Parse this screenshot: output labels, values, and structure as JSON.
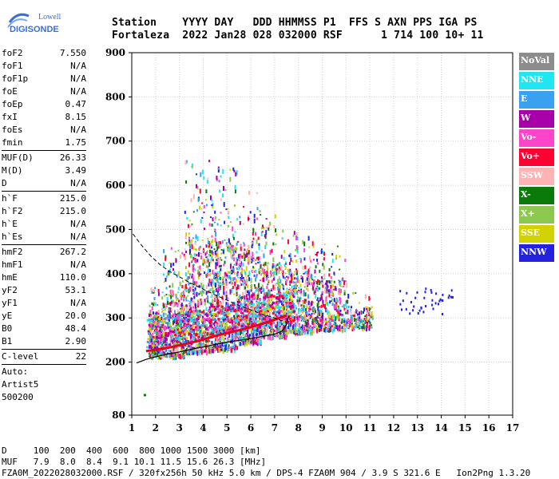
{
  "logo": {
    "line1": "Lowell",
    "line2": "DIGISONDE"
  },
  "header": {
    "line1": "Station    YYYY DAY   DDD HHMMSS P1  FFS S AXN PPS IGA PS",
    "line2": "Fortaleza  2022 Jan28 028 032000 RSF      1 714 100 10+ 11"
  },
  "params": [
    [
      {
        "label": "foF2",
        "value": "7.550"
      },
      {
        "label": "foF1",
        "value": "N/A"
      },
      {
        "label": "foF1p",
        "value": "N/A"
      },
      {
        "label": "foE",
        "value": "N/A"
      },
      {
        "label": "foEp",
        "value": "0.47"
      },
      {
        "label": "fxI",
        "value": "8.15"
      },
      {
        "label": "foEs",
        "value": "N/A"
      },
      {
        "label": "fmin",
        "value": "1.75"
      }
    ],
    [
      {
        "label": "MUF(D)",
        "value": "26.33"
      },
      {
        "label": "M(D)",
        "value": "3.49"
      },
      {
        "label": "D",
        "value": "N/A"
      }
    ],
    [
      {
        "label": "h`F",
        "value": "215.0"
      },
      {
        "label": "h`F2",
        "value": "215.0"
      },
      {
        "label": "h`E",
        "value": "N/A"
      },
      {
        "label": "h`Es",
        "value": "N/A"
      }
    ],
    [
      {
        "label": "hmF2",
        "value": "267.2"
      },
      {
        "label": "hmF1",
        "value": "N/A"
      },
      {
        "label": "hmE",
        "value": "110.0"
      },
      {
        "label": "yF2",
        "value": "53.1"
      },
      {
        "label": "yF1",
        "value": "N/A"
      },
      {
        "label": "yE",
        "value": "20.0"
      },
      {
        "label": "B0",
        "value": "48.4"
      },
      {
        "label": "B1",
        "value": "2.90"
      }
    ],
    [
      {
        "label": "C-level",
        "value": "22"
      }
    ],
    [
      {
        "label": "Auto:",
        "value": ""
      },
      {
        "label": "Artist5",
        "value": ""
      },
      {
        "label": "500200",
        "value": ""
      }
    ]
  ],
  "legend": [
    {
      "label": "NoVal",
      "color": "#8c8c8c"
    },
    {
      "label": "NNE",
      "color": "#1fe6f0"
    },
    {
      "label": "E",
      "color": "#3aa0f0"
    },
    {
      "label": "W",
      "color": "#a800a8"
    },
    {
      "label": "Vo-",
      "color": "#ff44cc"
    },
    {
      "label": "Vo+",
      "color": "#ff0033"
    },
    {
      "label": "SSW",
      "color": "#ffb3b3"
    },
    {
      "label": "X-",
      "color": "#0b7a0b"
    },
    {
      "label": "X+",
      "color": "#8cc850"
    },
    {
      "label": "SSE",
      "color": "#d2d200"
    },
    {
      "label": "NNW",
      "color": "#2222e0"
    }
  ],
  "footer": {
    "line1": "D     100  200  400  600  800 1000 1500 3000 [km]",
    "line2": "MUF   7.9  8.0  8.4  9.1 10.1 11.5 15.6 26.3 [MHz]",
    "line3": "FZA0M_2022028032000.RSF / 320fx256h 50 kHz 5.0 km / DPS-4 FZA0M 904 / 3.9 S 321.6 E   Ion2Png 1.3.20"
  },
  "chart_data": {
    "type": "scatter",
    "x_range": [
      1,
      17
    ],
    "y_range": [
      80,
      900
    ],
    "x_ticks": [
      "1",
      "2",
      "3",
      "4",
      "5",
      "6",
      "7",
      "8",
      "9",
      "10",
      "11",
      "12",
      "13",
      "14",
      "15",
      "16",
      "17"
    ],
    "y_ticks": [
      {
        "value": 80,
        "label": "80"
      },
      {
        "value": 200,
        "label": "200"
      },
      {
        "value": 300,
        "label": "300"
      },
      {
        "value": 400,
        "label": "400"
      },
      {
        "value": 500,
        "label": "500"
      },
      {
        "value": 600,
        "label": "600"
      },
      {
        "value": 700,
        "label": "700"
      },
      {
        "value": 800,
        "label": "800"
      },
      {
        "value": 900,
        "label": "900"
      }
    ],
    "grid": true,
    "profile_dashed": [
      [
        1.05,
        490
      ],
      [
        1.4,
        465
      ],
      [
        1.8,
        440
      ],
      [
        2.2,
        420
      ],
      [
        2.6,
        405
      ],
      [
        3.0,
        393
      ],
      [
        3.5,
        378
      ],
      [
        4.0,
        365
      ],
      [
        4.5,
        352
      ],
      [
        5.0,
        340
      ],
      [
        5.5,
        328
      ],
      [
        6.0,
        318
      ],
      [
        6.5,
        308
      ],
      [
        7.0,
        300
      ],
      [
        7.5,
        290
      ]
    ],
    "profile_solid": [
      [
        1.2,
        198
      ],
      [
        1.6,
        206
      ],
      [
        2.0,
        212
      ],
      [
        2.5,
        218
      ],
      [
        3.0,
        223
      ],
      [
        3.5,
        229
      ],
      [
        4.0,
        234
      ],
      [
        4.5,
        240
      ],
      [
        5.0,
        245
      ],
      [
        5.5,
        249
      ],
      [
        6.0,
        253
      ],
      [
        6.5,
        258
      ],
      [
        7.0,
        263
      ],
      [
        7.3,
        270
      ],
      [
        7.5,
        285
      ],
      [
        7.6,
        305
      ]
    ],
    "trace_red": [
      [
        1.6,
        225
      ],
      [
        2.0,
        228
      ],
      [
        2.5,
        232
      ],
      [
        3.0,
        238
      ],
      [
        3.5,
        244
      ],
      [
        4.0,
        251
      ],
      [
        4.5,
        259
      ],
      [
        5.0,
        266
      ],
      [
        5.5,
        272
      ],
      [
        6.0,
        279
      ],
      [
        6.5,
        287
      ],
      [
        7.0,
        296
      ],
      [
        7.5,
        305
      ]
    ],
    "clusters": [
      {
        "name": "NNW",
        "x": [
          12.2,
          14.5
        ],
        "y": [
          300,
          370
        ],
        "density": 0.15
      },
      {
        "name": "E",
        "x": [
          8.0,
          11.0
        ],
        "y": [
          275,
          420
        ],
        "density": 0.4
      }
    ]
  }
}
